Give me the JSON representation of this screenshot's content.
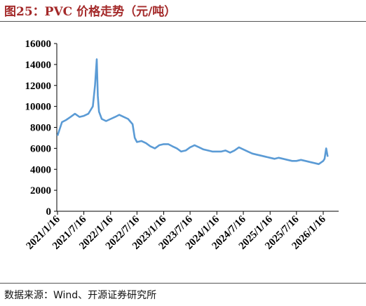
{
  "header": {
    "title": "图25：PVC 价格走势（元/吨）"
  },
  "footer": {
    "source": "数据来源：Wind、开源证券研究所"
  },
  "chart_data": {
    "type": "line",
    "title": "图25：PVC 价格走势（元/吨）",
    "xlabel": "",
    "ylabel": "",
    "ylim": [
      0,
      16000
    ],
    "yticks": [
      0,
      2000,
      4000,
      6000,
      8000,
      10000,
      12000,
      14000,
      16000
    ],
    "ytick_labels": [
      "0",
      "2000",
      "4000",
      "6000",
      "8000",
      "10000",
      "12000",
      "14000",
      "16000"
    ],
    "xticks": [
      "2021/1/16",
      "2021/7/16",
      "2022/1/16",
      "2022/7/16",
      "2023/1/16",
      "2023/7/16",
      "2024/1/16",
      "2024/7/16",
      "2025/1/16",
      "2025/7/16",
      "2026/1/16"
    ],
    "grid": false,
    "legend": "none",
    "line_color": "#5b9bd5",
    "series": [
      {
        "x": [
          "2021/1/16",
          "2021/2/16",
          "2021/3/16",
          "2021/4/16",
          "2021/5/16",
          "2021/6/16",
          "2021/7/16",
          "2021/8/16",
          "2021/9/16",
          "2021/10/1",
          "2021/10/13",
          "2021/10/20",
          "2021/10/28",
          "2021/11/16",
          "2021/12/16",
          "2022/1/16",
          "2022/2/16",
          "2022/3/16",
          "2022/4/16",
          "2022/5/16",
          "2022/6/16",
          "2022/7/1",
          "2022/7/16",
          "2022/8/16",
          "2022/9/16",
          "2022/10/16",
          "2022/11/16",
          "2022/12/16",
          "2023/1/16",
          "2023/2/16",
          "2023/3/16",
          "2023/4/16",
          "2023/5/16",
          "2023/6/16",
          "2023/7/16",
          "2023/8/16",
          "2023/9/16",
          "2023/10/16",
          "2023/11/16",
          "2023/12/16",
          "2024/1/16",
          "2024/2/16",
          "2024/3/16",
          "2024/4/16",
          "2024/5/16",
          "2024/6/16",
          "2024/7/16",
          "2024/8/16",
          "2024/9/16",
          "2024/10/16",
          "2024/11/16",
          "2024/12/16",
          "2025/1/16",
          "2025/2/16",
          "2025/3/16",
          "2025/4/16",
          "2025/5/16",
          "2025/6/16",
          "2025/7/16",
          "2025/8/16",
          "2025/9/16",
          "2025/10/16",
          "2025/11/16",
          "2025/12/16",
          "2026/1/16",
          "2026/1/25",
          "2026/2/5",
          "2026/2/16"
        ],
        "values": [
          7200,
          8500,
          8700,
          9000,
          9300,
          9000,
          9100,
          9300,
          10000,
          12000,
          14500,
          11000,
          9500,
          8800,
          8600,
          8800,
          9000,
          9200,
          9000,
          8800,
          8300,
          7000,
          6600,
          6700,
          6500,
          6200,
          6000,
          6300,
          6400,
          6400,
          6200,
          6000,
          5700,
          5800,
          6100,
          6300,
          6100,
          5900,
          5800,
          5700,
          5700,
          5700,
          5800,
          5600,
          5800,
          6100,
          5900,
          5700,
          5500,
          5400,
          5300,
          5200,
          5100,
          5000,
          5100,
          5000,
          4900,
          4800,
          4800,
          4900,
          4800,
          4700,
          4600,
          4500,
          4800,
          5000,
          6000,
          5200
        ]
      }
    ]
  }
}
